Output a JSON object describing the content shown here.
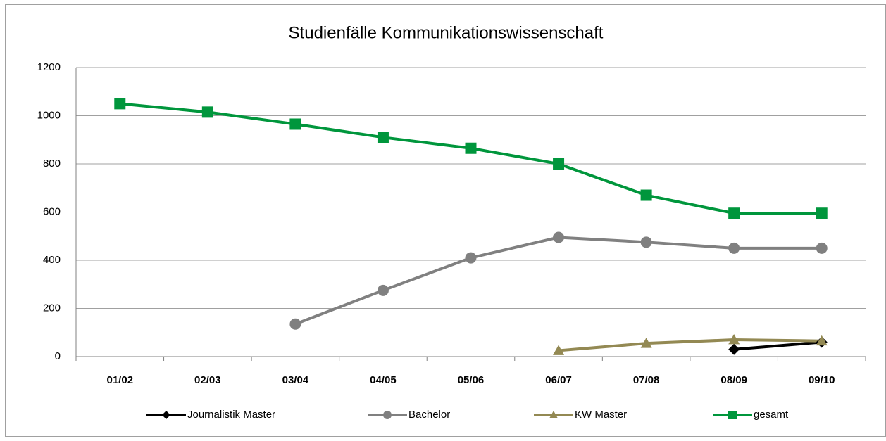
{
  "chart_data": {
    "type": "line",
    "title": "Studienfälle Kommunikationswissenschaft",
    "categories": [
      "01/02",
      "02/03",
      "03/04",
      "04/05",
      "05/06",
      "06/07",
      "07/08",
      "08/09",
      "09/10"
    ],
    "series": [
      {
        "name": "Journalistik Master",
        "color": "#000000",
        "marker": "diamond",
        "values": [
          null,
          null,
          null,
          null,
          null,
          null,
          null,
          30,
          60
        ]
      },
      {
        "name": "Bachelor",
        "color": "#808080",
        "marker": "circle",
        "values": [
          null,
          null,
          135,
          275,
          410,
          495,
          475,
          450,
          450
        ]
      },
      {
        "name": "KW Master",
        "color": "#938953",
        "marker": "triangle",
        "values": [
          null,
          null,
          null,
          null,
          null,
          25,
          55,
          70,
          65
        ]
      },
      {
        "name": "gesamt",
        "color": "#00963c",
        "marker": "square",
        "values": [
          1050,
          1015,
          965,
          910,
          865,
          800,
          670,
          595,
          595
        ]
      }
    ],
    "ylim": [
      0,
      1200
    ],
    "yticks": [
      0,
      200,
      400,
      600,
      800,
      1000,
      1200
    ],
    "grid": true,
    "legend": "bottom"
  }
}
